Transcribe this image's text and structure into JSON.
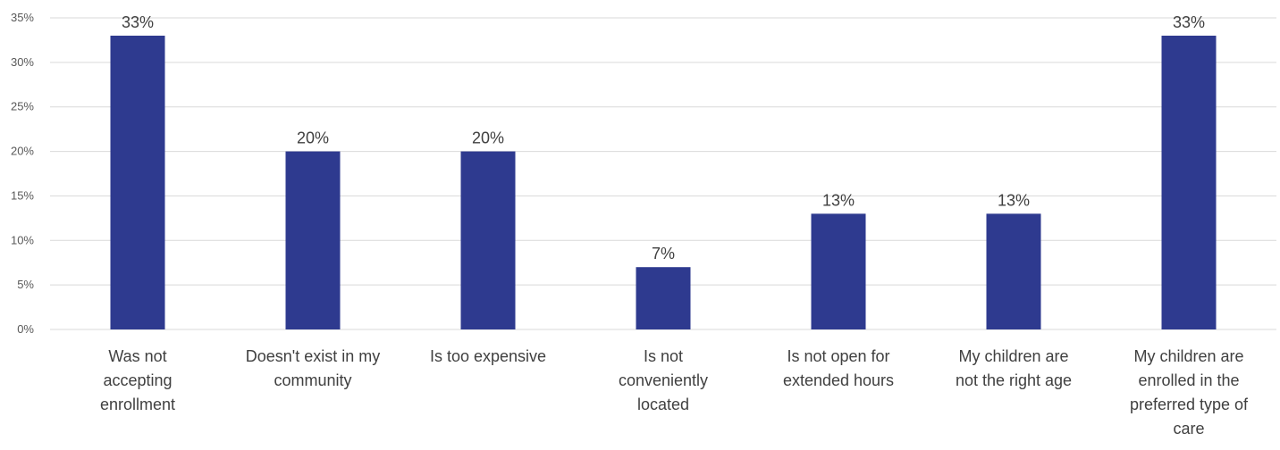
{
  "chart_data": {
    "type": "bar",
    "categories": [
      "Was not accepting enrollment",
      "Doesn't exist in my community",
      "Is too expensive",
      "Is not conveniently located",
      "Is not open for extended hours",
      "My children are not the right age",
      "My children are enrolled in the preferred type of care"
    ],
    "category_lines": [
      [
        "Was not",
        "accepting",
        "enrollment"
      ],
      [
        "Doesn't exist in my",
        "community"
      ],
      [
        "Is too expensive"
      ],
      [
        "Is not",
        "conveniently",
        "located"
      ],
      [
        "Is not open for",
        "extended hours"
      ],
      [
        "My children are",
        "not the right age"
      ],
      [
        "My children are",
        "enrolled in the",
        "preferred type of",
        "care"
      ]
    ],
    "values": [
      33,
      20,
      20,
      7,
      13,
      13,
      33
    ],
    "data_labels": [
      "33%",
      "20%",
      "20%",
      "7%",
      "13%",
      "13%",
      "33%"
    ],
    "ylim": [
      0,
      35
    ],
    "yticks": [
      0,
      5,
      10,
      15,
      20,
      25,
      30,
      35
    ],
    "ytick_labels": [
      "0%",
      "5%",
      "10%",
      "15%",
      "20%",
      "25%",
      "30%",
      "35%"
    ],
    "grid": true,
    "bar_color": "#2E3A8F",
    "gridline_color": "#D9D9D9",
    "title": "",
    "xlabel": "",
    "ylabel": ""
  }
}
